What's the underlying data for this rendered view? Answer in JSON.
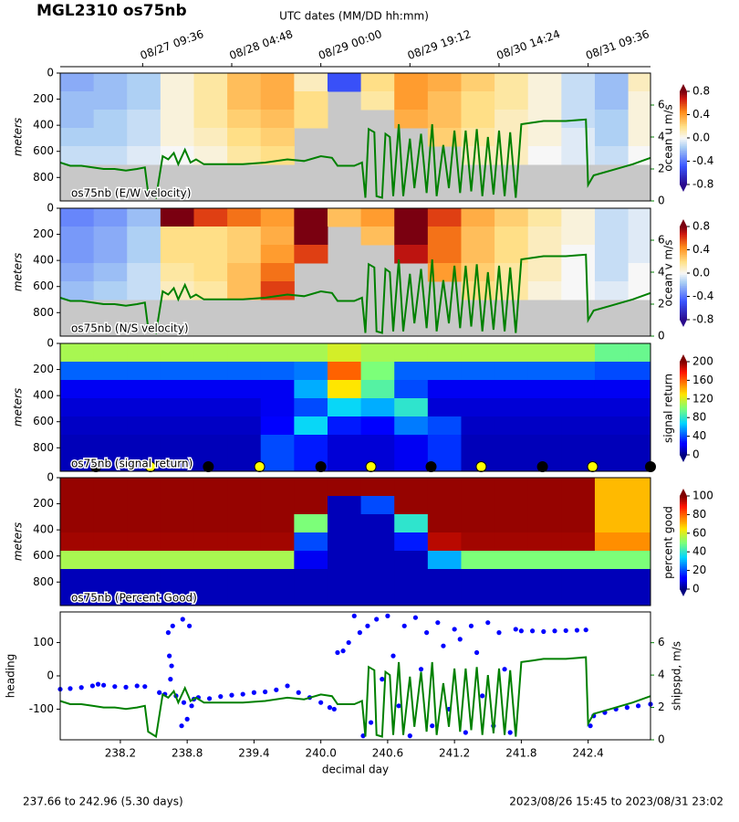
{
  "title": "MGL2310 os75nb",
  "top_axis": {
    "label": "UTC dates (MM/DD hh:mm)",
    "ticks": [
      {
        "value": 238.4,
        "label": "08/27 09:36"
      },
      {
        "value": 239.2,
        "label": "08/28 04:48"
      },
      {
        "value": 240.0,
        "label": "08/29 00:00"
      },
      {
        "value": 240.8,
        "label": "08/29 19:12"
      },
      {
        "value": 241.6,
        "label": "08/30 14:24"
      },
      {
        "value": 242.4,
        "label": "08/31 09:36"
      }
    ]
  },
  "footer": {
    "left": "237.66 to 242.96 (5.30 days)",
    "right": "2023/08/26 15:45 to 2023/08/31 23:02"
  },
  "chart_data": [
    {
      "type": "heatmap",
      "label": "os75nb (E/W velocity)",
      "ylabel": "meters",
      "xlim": [
        237.66,
        242.96
      ],
      "ylim": [
        980,
        0
      ],
      "yticks": [
        0,
        200,
        400,
        600,
        800
      ],
      "nodata_color": "#c8c8c8",
      "colormap": "diverging",
      "zlim": [
        -0.8,
        0.8
      ],
      "colorbar": {
        "label": "ocean u m/s",
        "ticks": [
          -0.8,
          -0.4,
          {
            "value": 0,
            "label": "0.0"
          },
          0.4,
          0.8
        ]
      },
      "y2lim": [
        0,
        8
      ],
      "y2ticks": [
        0,
        2,
        4,
        6
      ],
      "y2color": "green",
      "overlay_shipspd": true,
      "xbins": [
        237.66,
        237.96,
        238.26,
        238.56,
        238.86,
        239.16,
        239.46,
        239.76,
        240.06,
        240.36,
        240.66,
        240.96,
        241.26,
        241.56,
        241.86,
        242.16,
        242.46,
        242.76,
        242.96
      ],
      "ybins": [
        0,
        140,
        280,
        420,
        560,
        700,
        980
      ],
      "z": [
        [
          -0.25,
          -0.2,
          -0.15,
          0.05,
          0.15,
          0.3,
          0.35,
          0.1,
          -0.5,
          0.2,
          0.4,
          0.35,
          0.25,
          0.15,
          0.05,
          -0.1,
          -0.2,
          0.1
        ],
        [
          -0.2,
          -0.2,
          -0.15,
          0.05,
          0.15,
          0.3,
          0.35,
          0.2,
          null,
          0.15,
          0.4,
          0.3,
          0.2,
          0.15,
          0.05,
          -0.1,
          -0.2,
          0.05
        ],
        [
          -0.2,
          -0.15,
          -0.1,
          0.05,
          0.15,
          0.25,
          0.3,
          0.2,
          null,
          null,
          0.35,
          0.3,
          0.2,
          0.1,
          0.05,
          -0.1,
          -0.15,
          0.05
        ],
        [
          -0.15,
          -0.15,
          -0.1,
          0.05,
          0.1,
          0.2,
          0.25,
          null,
          null,
          null,
          null,
          0.25,
          0.15,
          0.1,
          0.05,
          -0.05,
          -0.15,
          0.05
        ],
        [
          -0.1,
          -0.1,
          -0.05,
          0.0,
          0.05,
          0.15,
          0.2,
          null,
          null,
          null,
          null,
          null,
          0.1,
          0.1,
          0.0,
          -0.05,
          -0.1,
          0.0
        ],
        [
          null,
          null,
          null,
          null,
          null,
          null,
          null,
          null,
          null,
          null,
          null,
          null,
          null,
          null,
          null,
          null,
          null,
          null
        ]
      ]
    },
    {
      "type": "heatmap",
      "label": "os75nb (N/S velocity)",
      "ylabel": "meters",
      "xlim": [
        237.66,
        242.96
      ],
      "ylim": [
        980,
        0
      ],
      "yticks": [
        0,
        200,
        400,
        600,
        800
      ],
      "nodata_color": "#c8c8c8",
      "colormap": "diverging",
      "zlim": [
        -0.8,
        0.8
      ],
      "colorbar": {
        "label": "ocean v m/s",
        "ticks": [
          -0.8,
          -0.4,
          {
            "value": 0,
            "label": "0.0"
          },
          0.4,
          0.8
        ]
      },
      "y2lim": [
        0,
        8
      ],
      "y2ticks": [
        0,
        2,
        4,
        6
      ],
      "y2color": "green",
      "overlay_shipspd": true,
      "xbins": [
        237.66,
        237.96,
        238.26,
        238.56,
        238.86,
        239.16,
        239.46,
        239.76,
        240.06,
        240.36,
        240.66,
        240.96,
        241.26,
        241.56,
        241.86,
        242.16,
        242.46,
        242.76,
        242.96
      ],
      "ybins": [
        0,
        140,
        280,
        420,
        560,
        700,
        980
      ],
      "z": [
        [
          -0.35,
          -0.3,
          -0.2,
          0.8,
          0.6,
          0.5,
          0.4,
          0.8,
          0.3,
          0.4,
          0.8,
          0.6,
          0.35,
          0.25,
          0.15,
          0.05,
          -0.1,
          -0.05
        ],
        [
          -0.3,
          -0.25,
          -0.15,
          0.2,
          0.2,
          0.25,
          0.35,
          0.8,
          null,
          0.3,
          0.8,
          0.5,
          0.3,
          0.2,
          0.1,
          0.05,
          -0.1,
          -0.05
        ],
        [
          -0.3,
          -0.25,
          -0.15,
          0.2,
          0.2,
          0.25,
          0.4,
          0.6,
          null,
          null,
          0.7,
          0.5,
          0.3,
          0.2,
          0.1,
          0.0,
          -0.1,
          -0.05
        ],
        [
          -0.25,
          -0.2,
          -0.1,
          0.15,
          0.2,
          0.3,
          0.5,
          null,
          null,
          null,
          null,
          0.4,
          0.25,
          0.15,
          0.1,
          0.0,
          -0.1,
          0.0
        ],
        [
          -0.2,
          -0.15,
          -0.1,
          0.1,
          0.15,
          0.3,
          0.6,
          null,
          null,
          null,
          null,
          null,
          0.2,
          0.15,
          0.05,
          0.0,
          -0.05,
          0.0
        ],
        [
          null,
          null,
          null,
          null,
          null,
          null,
          null,
          null,
          null,
          null,
          null,
          null,
          null,
          null,
          null,
          null,
          null,
          null
        ]
      ]
    },
    {
      "type": "heatmap",
      "label": "os75nb (signal return)",
      "ylabel": "meters",
      "xlim": [
        237.66,
        242.96
      ],
      "ylim": [
        980,
        0
      ],
      "yticks": [
        0,
        200,
        400,
        600,
        800
      ],
      "colormap": "jet",
      "zlim": [
        0,
        200
      ],
      "colorbar": {
        "label": "signal return",
        "ticks": [
          0,
          40,
          80,
          120,
          160,
          200
        ]
      },
      "xbins": [
        237.66,
        237.96,
        238.26,
        238.56,
        238.86,
        239.16,
        239.46,
        239.76,
        240.06,
        240.36,
        240.66,
        240.96,
        241.26,
        241.56,
        241.86,
        242.16,
        242.46,
        242.76,
        242.96
      ],
      "ybins": [
        0,
        140,
        280,
        420,
        560,
        700,
        980
      ],
      "z": [
        [
          110,
          110,
          110,
          110,
          110,
          110,
          110,
          110,
          120,
          110,
          110,
          110,
          110,
          110,
          110,
          110,
          95,
          95
        ],
        [
          45,
          45,
          45,
          45,
          45,
          45,
          45,
          50,
          160,
          100,
          45,
          45,
          45,
          45,
          45,
          45,
          40,
          40
        ],
        [
          20,
          20,
          20,
          20,
          20,
          20,
          20,
          60,
          130,
          90,
          40,
          20,
          20,
          20,
          20,
          20,
          20,
          20
        ],
        [
          15,
          15,
          15,
          15,
          15,
          15,
          20,
          40,
          70,
          60,
          80,
          15,
          15,
          15,
          15,
          15,
          15,
          15
        ],
        [
          12,
          12,
          12,
          12,
          12,
          12,
          25,
          70,
          30,
          25,
          50,
          40,
          12,
          12,
          12,
          12,
          12,
          12
        ],
        [
          10,
          10,
          10,
          10,
          10,
          10,
          40,
          30,
          15,
          15,
          20,
          35,
          10,
          10,
          10,
          10,
          10,
          10
        ]
      ],
      "markers": {
        "x": [
          237.98,
          238.47,
          238.99,
          239.45,
          240.0,
          240.45,
          240.99,
          241.44,
          241.99,
          242.44,
          242.96
        ],
        "colors": [
          "#000000",
          "#ffff00",
          "#000000",
          "#ffff00",
          "#000000",
          "#ffff00",
          "#000000",
          "#ffff00",
          "#000000",
          "#ffff00",
          "#000000"
        ]
      }
    },
    {
      "type": "heatmap",
      "label": "os75nb (Percent Good)",
      "ylabel": "meters",
      "xlim": [
        237.66,
        242.96
      ],
      "ylim": [
        980,
        0
      ],
      "yticks": [
        0,
        200,
        400,
        600,
        800
      ],
      "colormap": "jet",
      "zlim": [
        0,
        100
      ],
      "colorbar": {
        "label": "percent good",
        "ticks": [
          0,
          20,
          40,
          60,
          80,
          100
        ]
      },
      "xbins": [
        237.66,
        237.96,
        238.26,
        238.56,
        238.86,
        239.16,
        239.46,
        239.76,
        240.06,
        240.36,
        240.66,
        240.96,
        241.26,
        241.56,
        241.86,
        242.16,
        242.46,
        242.76,
        242.96
      ],
      "ybins": [
        0,
        140,
        280,
        420,
        560,
        700,
        980
      ],
      "z": [
        [
          98,
          98,
          98,
          98,
          98,
          98,
          98,
          98,
          98,
          98,
          98,
          98,
          98,
          98,
          98,
          98,
          70,
          70
        ],
        [
          98,
          98,
          98,
          98,
          98,
          98,
          98,
          98,
          5,
          20,
          98,
          98,
          98,
          98,
          98,
          98,
          70,
          70
        ],
        [
          98,
          98,
          98,
          98,
          98,
          98,
          98,
          50,
          5,
          5,
          40,
          98,
          98,
          98,
          98,
          98,
          70,
          70
        ],
        [
          97,
          97,
          97,
          97,
          97,
          97,
          97,
          20,
          5,
          5,
          15,
          95,
          97,
          97,
          97,
          97,
          75,
          75
        ],
        [
          55,
          55,
          55,
          55,
          55,
          55,
          55,
          10,
          5,
          5,
          5,
          30,
          50,
          50,
          50,
          50,
          50,
          50
        ],
        [
          5,
          5,
          5,
          5,
          5,
          5,
          5,
          5,
          5,
          5,
          5,
          5,
          5,
          5,
          5,
          5,
          5,
          5
        ]
      ]
    },
    {
      "type": "scatter_line",
      "xlabel": "decimal day",
      "ylabel": "heading",
      "y2label": "shipspd, m/s",
      "xlim": [
        237.66,
        242.96
      ],
      "xticks": [
        238.2,
        238.8,
        239.4,
        {
          "value": 240.0,
          "label": "240.0"
        },
        240.6,
        241.2,
        241.8,
        242.4
      ],
      "ylim": [
        -192,
        192
      ],
      "yticks": [
        -100,
        0,
        100
      ],
      "y2lim": [
        0,
        7.9
      ],
      "y2ticks": [
        0,
        2,
        4,
        6
      ],
      "heading": {
        "color": "#0000ff",
        "x": [
          237.66,
          237.75,
          237.85,
          237.95,
          238.0,
          238.05,
          238.15,
          238.25,
          238.35,
          238.42,
          238.55,
          238.6,
          238.63,
          238.64,
          238.65,
          238.66,
          238.67,
          238.7,
          238.75,
          238.76,
          238.77,
          238.8,
          238.82,
          238.84,
          238.86,
          238.9,
          239.0,
          239.1,
          239.2,
          239.3,
          239.4,
          239.5,
          239.6,
          239.7,
          239.8,
          239.9,
          240.0,
          240.08,
          240.12,
          240.15,
          240.2,
          240.25,
          240.3,
          240.35,
          240.38,
          240.42,
          240.45,
          240.5,
          240.55,
          240.6,
          240.65,
          240.7,
          240.75,
          240.8,
          240.85,
          240.9,
          240.95,
          241.0,
          241.05,
          241.1,
          241.15,
          241.2,
          241.25,
          241.3,
          241.35,
          241.4,
          241.45,
          241.5,
          241.55,
          241.6,
          241.65,
          241.7,
          241.75,
          241.8,
          241.9,
          242.0,
          242.1,
          242.2,
          242.3,
          242.38,
          242.42,
          242.45,
          242.55,
          242.65,
          242.75,
          242.85,
          242.96
        ],
        "values": [
          -40,
          -38,
          -35,
          -30,
          -25,
          -28,
          -32,
          -34,
          -30,
          -32,
          -50,
          -55,
          130,
          60,
          -10,
          30,
          150,
          -60,
          -150,
          170,
          -80,
          -130,
          150,
          -90,
          -70,
          -65,
          -68,
          -62,
          -58,
          -55,
          -50,
          -48,
          -42,
          -30,
          -50,
          -65,
          -80,
          -95,
          -100,
          70,
          75,
          100,
          180,
          130,
          -180,
          150,
          -140,
          170,
          -10,
          180,
          60,
          -90,
          150,
          -180,
          175,
          20,
          130,
          -150,
          160,
          90,
          -100,
          140,
          110,
          -170,
          150,
          70,
          -60,
          160,
          -150,
          130,
          20,
          -170,
          140,
          135,
          135,
          133,
          135,
          136,
          137,
          138,
          -150,
          -120,
          -110,
          -100,
          -95,
          -90,
          -85
        ]
      },
      "shipspd": {
        "color": "#008000",
        "x": [
          237.66,
          237.75,
          237.85,
          237.95,
          238.05,
          238.15,
          238.25,
          238.35,
          238.42,
          238.45,
          238.52,
          238.58,
          238.63,
          238.68,
          238.72,
          238.78,
          238.83,
          238.88,
          238.95,
          239.1,
          239.3,
          239.5,
          239.7,
          239.85,
          240.0,
          240.1,
          240.15,
          240.3,
          240.37,
          240.4,
          240.43,
          240.48,
          240.5,
          240.55,
          240.58,
          240.62,
          240.65,
          240.7,
          240.74,
          240.8,
          240.84,
          240.9,
          240.95,
          241.0,
          241.04,
          241.1,
          241.15,
          241.2,
          241.25,
          241.3,
          241.35,
          241.4,
          241.45,
          241.5,
          241.55,
          241.6,
          241.65,
          241.7,
          241.75,
          241.8,
          241.9,
          242.0,
          242.2,
          242.38,
          242.4,
          242.45,
          242.6,
          242.8,
          242.96
        ],
        "values": [
          2.4,
          2.2,
          2.2,
          2.1,
          2.0,
          2.0,
          1.9,
          2.0,
          2.1,
          0.5,
          0.2,
          2.8,
          2.6,
          3.0,
          2.3,
          3.2,
          2.4,
          2.6,
          2.3,
          2.3,
          2.3,
          2.4,
          2.6,
          2.5,
          2.8,
          2.7,
          2.2,
          2.2,
          2.4,
          0.2,
          4.5,
          4.3,
          0.3,
          0.2,
          4.2,
          4.0,
          0.3,
          4.8,
          0.3,
          3.9,
          0.8,
          4.2,
          0.5,
          4.8,
          0.3,
          3.5,
          0.8,
          4.4,
          0.5,
          4.4,
          0.6,
          4.5,
          0.3,
          4.0,
          0.4,
          4.4,
          0.3,
          4.3,
          0.2,
          4.8,
          4.9,
          5.0,
          5.0,
          5.1,
          1.0,
          1.6,
          1.9,
          2.3,
          2.7
        ]
      }
    }
  ]
}
